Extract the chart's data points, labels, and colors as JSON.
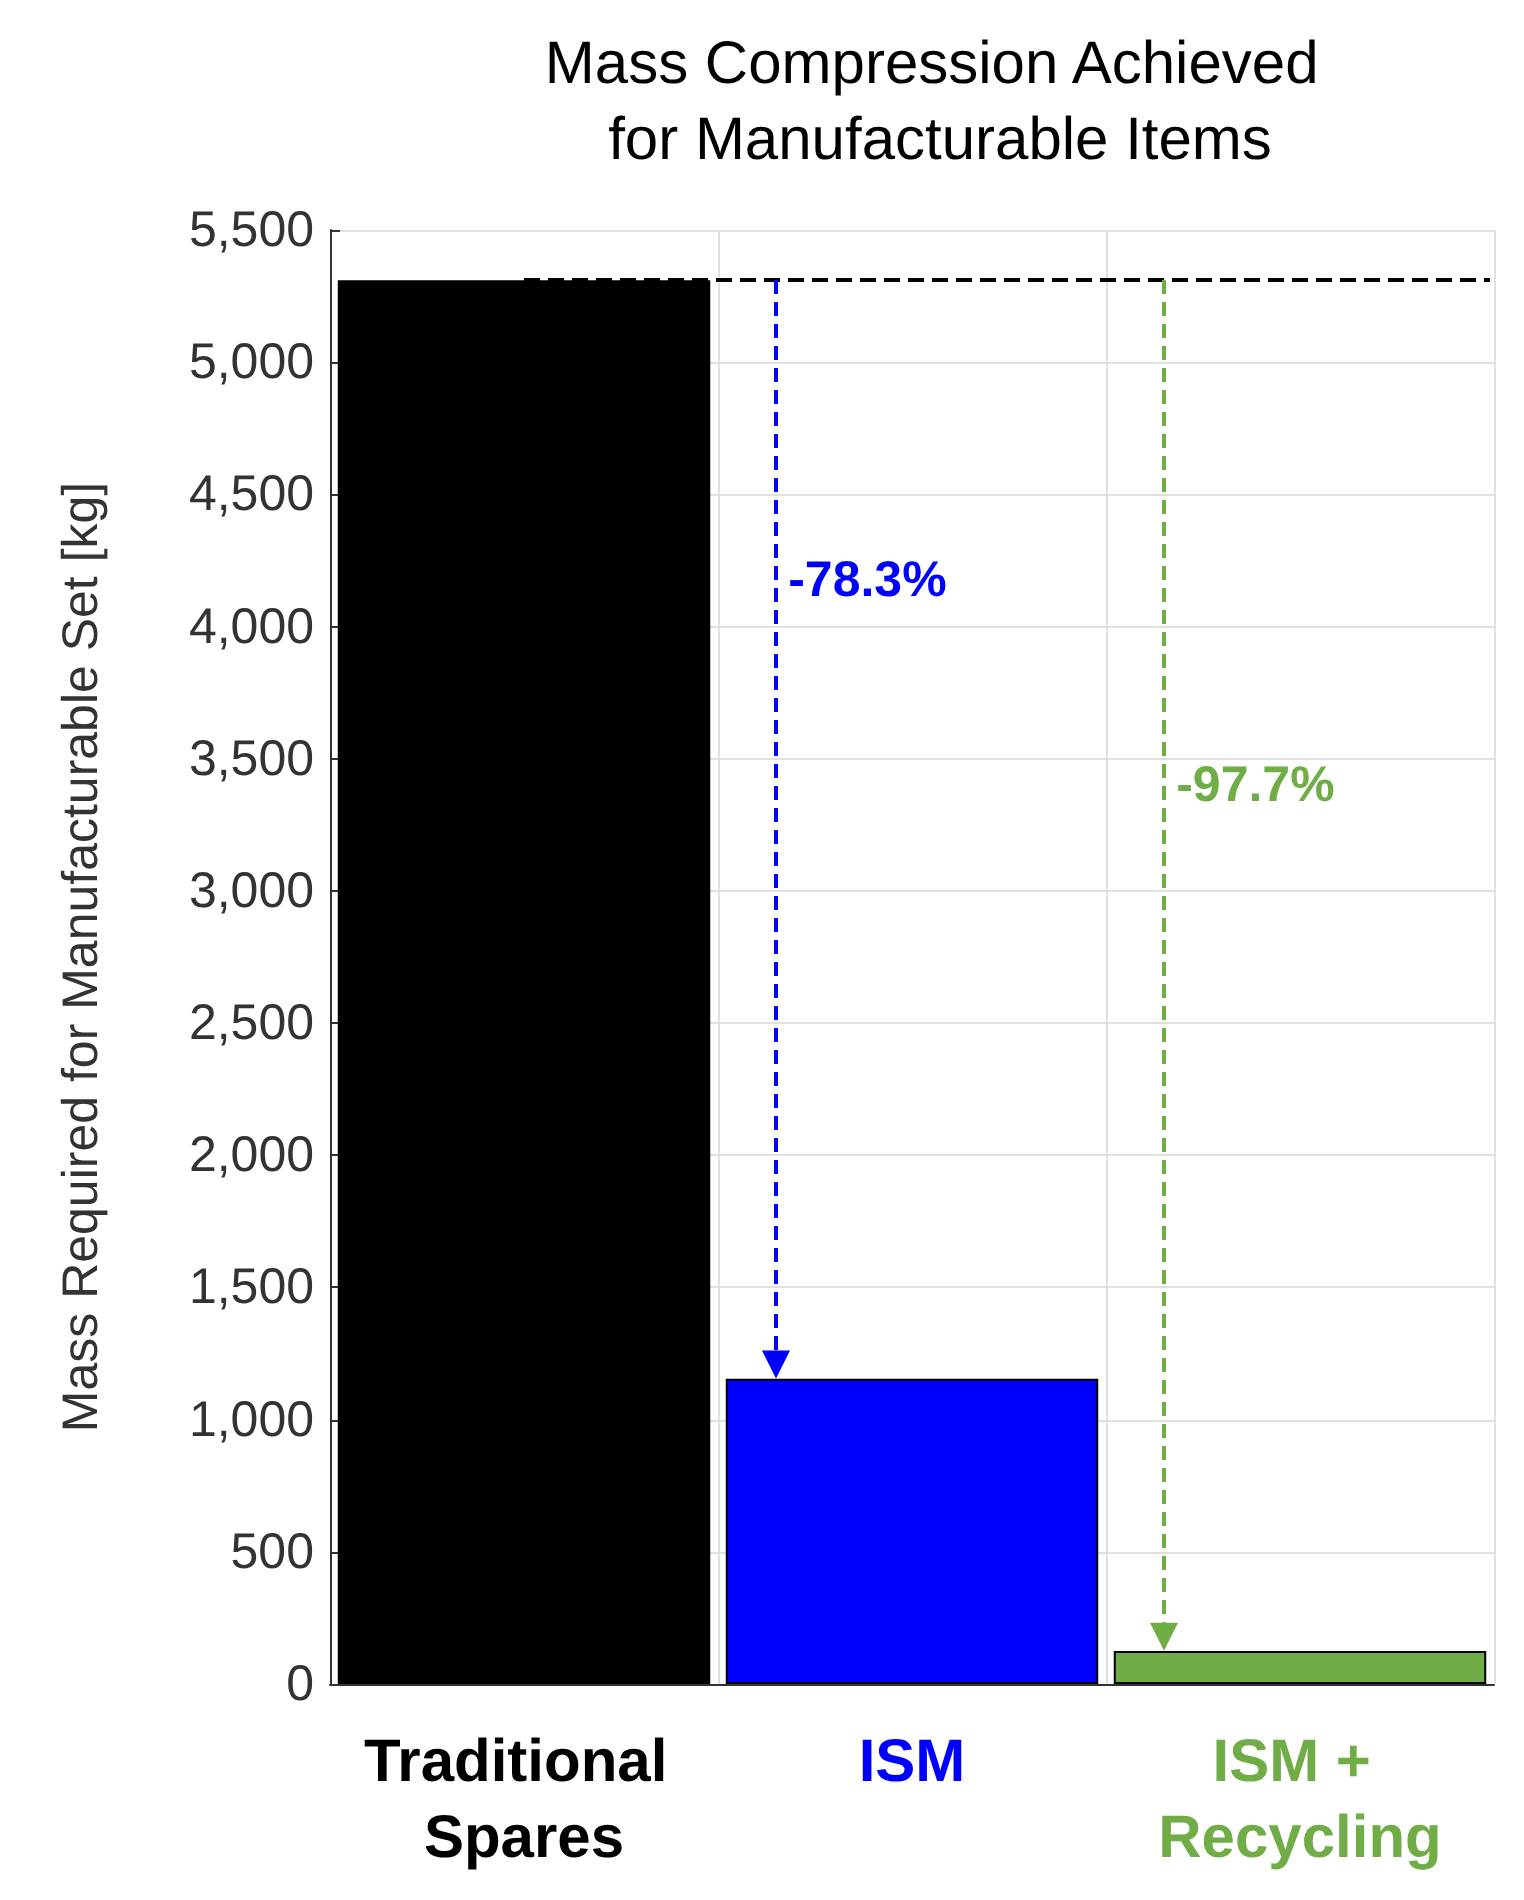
{
  "chart_data": {
    "type": "bar",
    "title": "Mass Compression Achieved for Manufacturable Items",
    "ylabel": "Mass Required for Manufacturable Set [kg]",
    "categories": [
      "Traditional Spares",
      "ISM",
      "ISM + Recycling"
    ],
    "values": [
      5310,
      1155,
      125
    ],
    "colors": [
      "#000000",
      "#0000ff",
      "#70ad47"
    ],
    "ylim": [
      0,
      5500
    ],
    "yticks": [
      0,
      500,
      {
        "value": 1000,
        "label": "1,000"
      },
      {
        "value": 1500,
        "label": "1,500"
      },
      {
        "value": 2000,
        "label": "2,000"
      },
      {
        "value": 2500,
        "label": "2,500"
      },
      {
        "value": 3000,
        "label": "3,000"
      },
      {
        "value": 3500,
        "label": "3,500"
      },
      {
        "value": 4000,
        "label": "4,000"
      },
      {
        "value": 4500,
        "label": "4,500"
      },
      {
        "value": 5000,
        "label": "5,000"
      },
      {
        "value": 5500,
        "label": "5,500"
      }
    ],
    "grid": true,
    "ref_lines": [
      {
        "axis": "y",
        "value": 5310,
        "color": "#000000",
        "line_style": "dashed"
      }
    ],
    "annotations": [
      "-78.3%",
      "-97.7%"
    ]
  }
}
